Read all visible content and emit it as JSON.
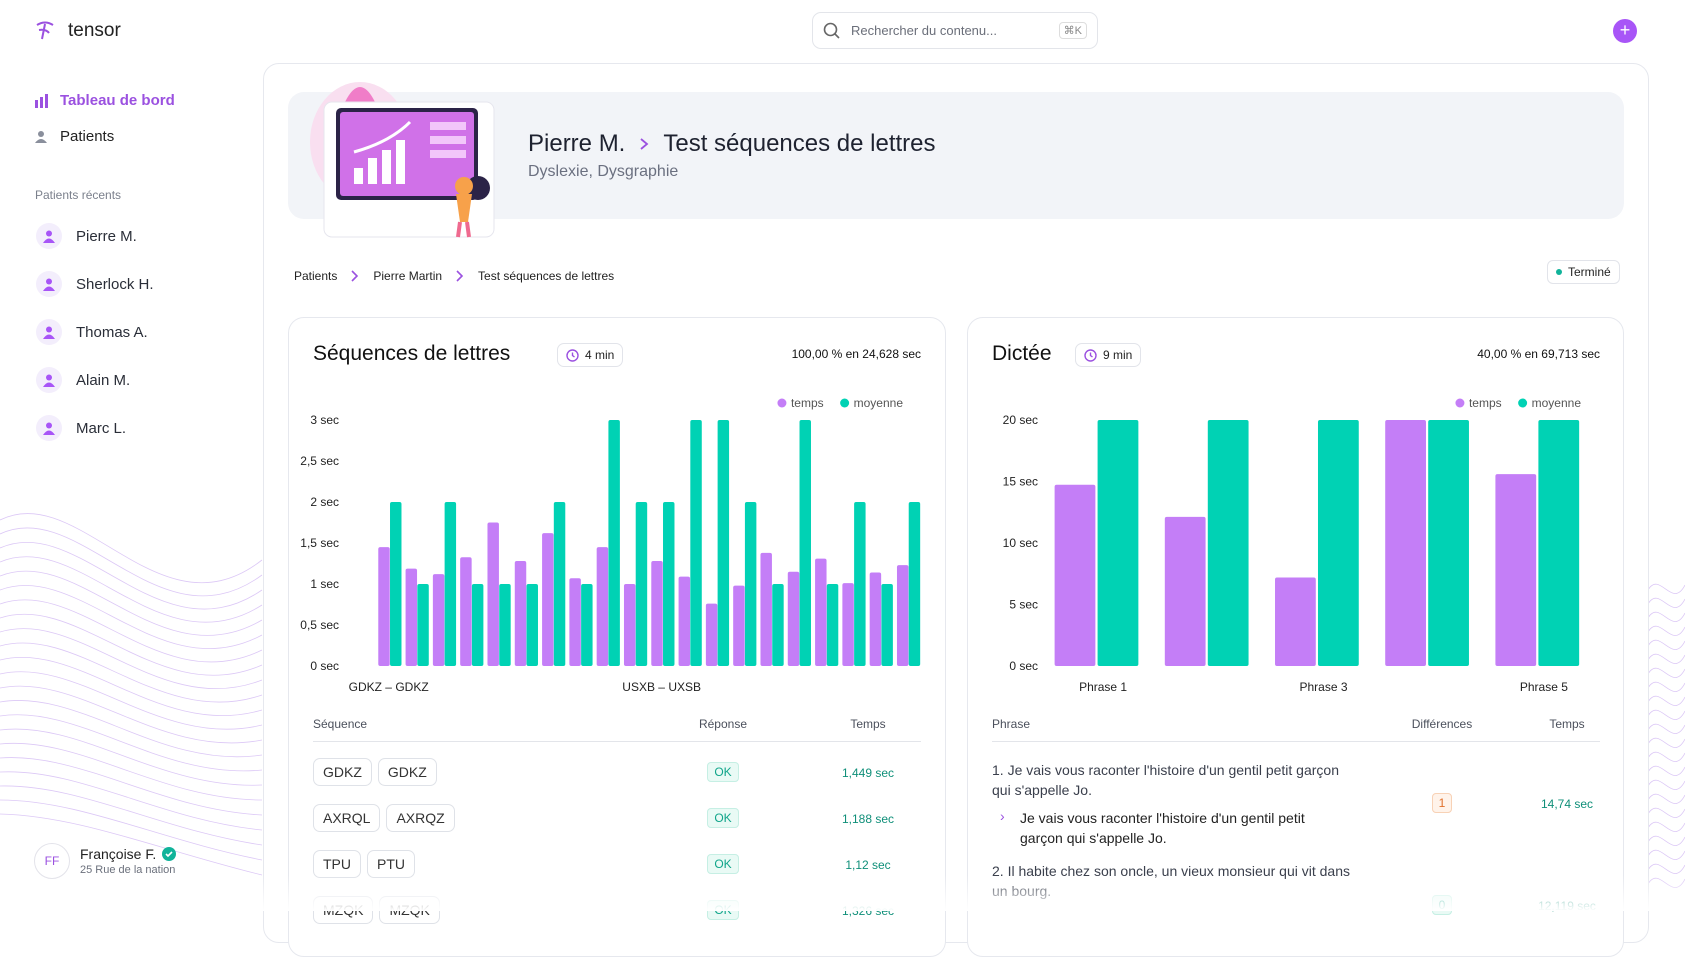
{
  "app": {
    "name": "tensor",
    "search_placeholder": "Rechercher du contenu...",
    "search_shortcut": "⌘K"
  },
  "sidebar": {
    "nav": [
      "Tableau de bord",
      "Patients"
    ],
    "recent_title": "Patients récents",
    "recent": [
      "Pierre M.",
      "Sherlock H.",
      "Thomas A.",
      "Alain M.",
      "Marc L."
    ],
    "user": {
      "initials": "FF",
      "name": "Françoise F.",
      "address": "25 Rue de la nation"
    }
  },
  "header": {
    "patient": "Pierre M.",
    "test": "Test séquences de lettres",
    "diagnosis": "Dyslexie, Dysgraphie"
  },
  "breadcrumb": [
    "Patients",
    "Pierre Martin",
    "Test séquences de lettres"
  ],
  "status": "Terminé",
  "panels": [
    {
      "title": "Séquences de lettres",
      "duration": "4 min",
      "score": "100,00 % en 24,628 sec",
      "table": {
        "header": [
          "Séquence",
          "Réponse",
          "Temps"
        ],
        "rows": [
          [
            "GDKZ",
            "GDKZ",
            "OK",
            "1,449 sec"
          ],
          [
            "AXRQL",
            "AXRQZ",
            "OK",
            "1,188 sec"
          ],
          [
            "TPU",
            "PTU",
            "OK",
            "1,12 sec"
          ],
          [
            "MZQK",
            "MZQK",
            "OK",
            "1,326 sec"
          ]
        ]
      }
    },
    {
      "title": "Dictée",
      "duration": "9 min",
      "score": "40,00 % en 69,713 sec",
      "table": {
        "header": [
          "Phrase",
          "Différences",
          "Temps"
        ],
        "rows": [
          {
            "phrase": "1. Je vais vous raconter l'histoire d'un gentil petit garçon qui s'appelle Jo.",
            "answer": "Je vais vous raconter l'histoire d'un gentil petit garçon qui s'appelle Jo.",
            "differences": "1",
            "time": "14,74 sec"
          },
          {
            "phrase": "2. Il habite chez son oncle, un vieux monsieur qui vit dans un bourg.",
            "differences": "0",
            "time": "12,119 sec"
          }
        ]
      }
    }
  ],
  "chart_data": [
    {
      "type": "bar",
      "legend": "top-right",
      "grid": false,
      "categories": [
        "GDKZ – GDKZ",
        null,
        null,
        null,
        null,
        null,
        null,
        null,
        null,
        null,
        "USXB – UXSB",
        null,
        null,
        null,
        null,
        null,
        null,
        null,
        null,
        null
      ],
      "series": [
        {
          "name": "temps",
          "color": "#c47ef7",
          "values": [
            1.449,
            1.188,
            1.12,
            1.326,
            1.75,
            1.28,
            1.62,
            1.07,
            1.45,
            1.0,
            1.28,
            1.09,
            0.76,
            0.98,
            1.38,
            1.15,
            1.31,
            1.01,
            1.14,
            1.23
          ]
        },
        {
          "name": "moyenne",
          "color": "#00d2b4",
          "values": [
            2,
            1,
            2,
            1,
            1,
            1,
            2,
            1,
            3,
            2,
            2,
            3,
            3,
            2,
            1,
            3,
            1,
            2,
            1,
            2
          ]
        }
      ],
      "ylim": [
        0,
        3
      ],
      "yticks": [
        {
          "value": 0,
          "label": "0 sec"
        },
        {
          "value": 0.5,
          "label": "0,5 sec"
        },
        {
          "value": 1,
          "label": "1 sec"
        },
        {
          "value": 1.5,
          "label": "1,5 sec"
        },
        {
          "value": 2,
          "label": "2 sec"
        },
        {
          "value": 2.5,
          "label": "2,5 sec"
        },
        {
          "value": 3,
          "label": "3 sec"
        }
      ]
    },
    {
      "type": "bar",
      "legend": "top-right",
      "grid": false,
      "categories": [
        "Phrase 1",
        null,
        "Phrase 3",
        null,
        "Phrase 5"
      ],
      "series": [
        {
          "name": "temps",
          "color": "#c47ef7",
          "values": [
            14.74,
            12.119,
            7.2,
            20,
            15.6
          ]
        },
        {
          "name": "moyenne",
          "color": "#00d2b4",
          "values": [
            20,
            20,
            20,
            20,
            20
          ]
        }
      ],
      "ylim": [
        0,
        20
      ],
      "yticks": [
        {
          "value": 0,
          "label": "0 sec"
        },
        {
          "value": 5,
          "label": "5 sec"
        },
        {
          "value": 10,
          "label": "10 sec"
        },
        {
          "value": 15,
          "label": "15 sec"
        },
        {
          "value": 20,
          "label": "20 sec"
        }
      ]
    }
  ]
}
